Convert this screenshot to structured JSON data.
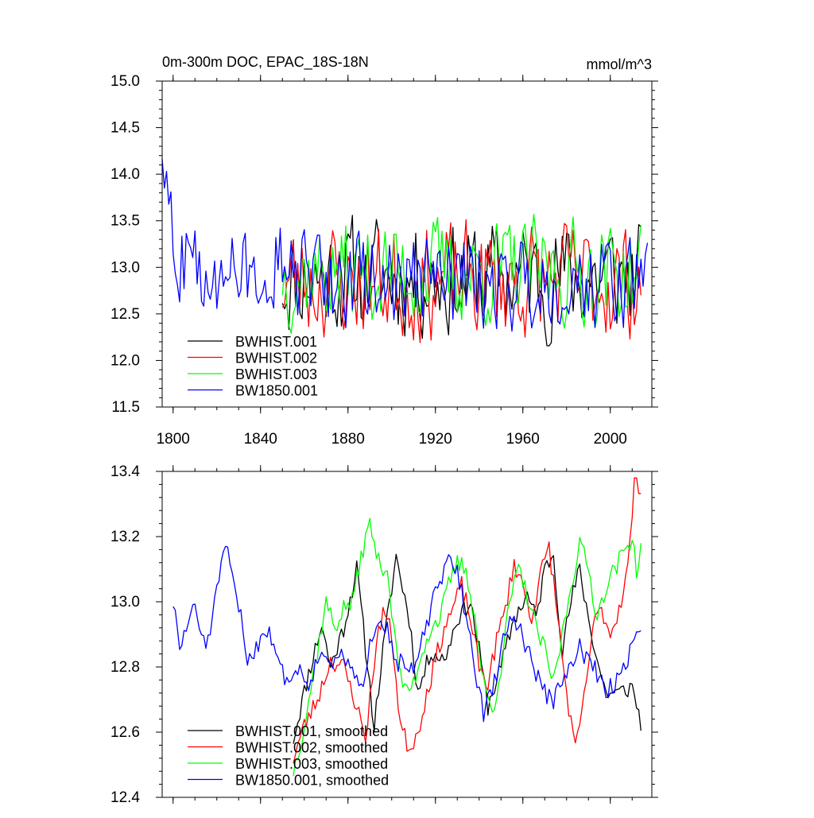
{
  "chart_data": [
    {
      "type": "line",
      "title_left": "0m-300m DOC, EPAC_18S-18N",
      "title_right": "mmol/m^3",
      "xlim": [
        1795,
        2019
      ],
      "ylim": [
        11.5,
        15.0
      ],
      "xticks": [
        1800,
        1840,
        1880,
        1920,
        1960,
        2000
      ],
      "xtick_labels": [
        "1800",
        "1840",
        "1880",
        "1920",
        "1960",
        "2000"
      ],
      "yticks": [
        11.5,
        12.0,
        12.5,
        13.0,
        13.5,
        14.0,
        14.5,
        15.0
      ],
      "ytick_labels": [
        "11.5",
        "12.0",
        "12.5",
        "13.0",
        "13.5",
        "14.0",
        "14.5",
        "15.0"
      ],
      "legend_location": "lower-left",
      "series": [
        {
          "name": "BWHIST.001",
          "color": "#000000",
          "start": 1850,
          "end": 2014,
          "mean": 12.9,
          "amplitude": 0.55,
          "seed": 11,
          "mode": "annual"
        },
        {
          "name": "BWHIST.002",
          "color": "#ff0000",
          "start": 1850,
          "end": 2014,
          "mean": 12.85,
          "amplitude": 0.55,
          "seed": 23,
          "mode": "annual"
        },
        {
          "name": "BWHIST.003",
          "color": "#00ff00",
          "start": 1850,
          "end": 2014,
          "mean": 12.95,
          "amplitude": 0.5,
          "seed": 37,
          "mode": "annual"
        },
        {
          "name": "BW1850.001",
          "color": "#0000ff",
          "start": 1795,
          "end": 2017,
          "mean": 12.85,
          "amplitude": 0.45,
          "seed": 51,
          "mode": "annual"
        }
      ]
    },
    {
      "type": "line",
      "xlim": [
        1795,
        2019
      ],
      "ylim": [
        12.4,
        13.4
      ],
      "xticks": [
        1800,
        1840,
        1880,
        1920,
        1960,
        2000
      ],
      "yticks": [
        12.4,
        12.6,
        12.8,
        13.0,
        13.2,
        13.4
      ],
      "ytick_labels": [
        "12.4",
        "12.6",
        "12.8",
        "13.0",
        "13.2",
        "13.4"
      ],
      "legend_location": "lower-left",
      "series": [
        {
          "name": "BWHIST.001, smoothed",
          "color": "#000000",
          "start": 1855,
          "end": 2014,
          "seed": 11,
          "mode": "smoothed",
          "anchors": [
            [
              1855,
              12.58
            ],
            [
              1862,
              12.78
            ],
            [
              1868,
              12.93
            ],
            [
              1872,
              12.8
            ],
            [
              1878,
              12.92
            ],
            [
              1884,
              13.1
            ],
            [
              1888,
              12.86
            ],
            [
              1892,
              12.62
            ],
            [
              1896,
              12.85
            ],
            [
              1902,
              13.14
            ],
            [
              1908,
              12.95
            ],
            [
              1912,
              12.72
            ],
            [
              1918,
              12.85
            ],
            [
              1924,
              12.82
            ],
            [
              1930,
              12.95
            ],
            [
              1936,
              13.0
            ],
            [
              1940,
              12.85
            ],
            [
              1944,
              12.68
            ],
            [
              1950,
              12.8
            ],
            [
              1956,
              12.95
            ],
            [
              1962,
              13.02
            ],
            [
              1966,
              12.95
            ],
            [
              1970,
              13.1
            ],
            [
              1974,
              13.15
            ],
            [
              1978,
              12.85
            ],
            [
              1982,
              13.0
            ],
            [
              1986,
              13.1
            ],
            [
              1990,
              12.95
            ],
            [
              1994,
              12.82
            ],
            [
              1998,
              12.72
            ],
            [
              2004,
              12.72
            ],
            [
              2010,
              12.74
            ],
            [
              2014,
              12.63
            ]
          ]
        },
        {
          "name": "BWHIST.002, smoothed",
          "color": "#ff0000",
          "start": 1855,
          "end": 2014,
          "seed": 23,
          "mode": "smoothed",
          "anchors": [
            [
              1855,
              12.52
            ],
            [
              1860,
              12.62
            ],
            [
              1866,
              12.7
            ],
            [
              1872,
              12.82
            ],
            [
              1878,
              12.8
            ],
            [
              1884,
              12.68
            ],
            [
              1888,
              12.58
            ],
            [
              1892,
              12.82
            ],
            [
              1896,
              12.98
            ],
            [
              1900,
              12.9
            ],
            [
              1904,
              12.62
            ],
            [
              1908,
              12.55
            ],
            [
              1912,
              12.6
            ],
            [
              1916,
              12.72
            ],
            [
              1920,
              12.82
            ],
            [
              1924,
              12.92
            ],
            [
              1928,
              12.98
            ],
            [
              1932,
              13.05
            ],
            [
              1936,
              12.95
            ],
            [
              1940,
              12.8
            ],
            [
              1944,
              12.75
            ],
            [
              1948,
              12.88
            ],
            [
              1952,
              12.98
            ],
            [
              1956,
              13.12
            ],
            [
              1960,
              13.05
            ],
            [
              1964,
              12.95
            ],
            [
              1968,
              13.08
            ],
            [
              1972,
              13.17
            ],
            [
              1976,
              12.95
            ],
            [
              1980,
              12.72
            ],
            [
              1984,
              12.54
            ],
            [
              1988,
              12.7
            ],
            [
              1992,
              12.92
            ],
            [
              1996,
              12.98
            ],
            [
              2000,
              12.9
            ],
            [
              2004,
              12.98
            ],
            [
              2008,
              13.1
            ],
            [
              2011,
              13.36
            ],
            [
              2014,
              13.36
            ]
          ]
        },
        {
          "name": "BWHIST.003, smoothed",
          "color": "#00ff00",
          "start": 1855,
          "end": 2014,
          "seed": 37,
          "mode": "smoothed",
          "anchors": [
            [
              1855,
              12.48
            ],
            [
              1860,
              12.62
            ],
            [
              1866,
              12.85
            ],
            [
              1870,
              13.0
            ],
            [
              1874,
              12.92
            ],
            [
              1878,
              12.98
            ],
            [
              1882,
              13.0
            ],
            [
              1886,
              13.14
            ],
            [
              1890,
              13.24
            ],
            [
              1894,
              13.12
            ],
            [
              1898,
              13.1
            ],
            [
              1902,
              12.85
            ],
            [
              1906,
              12.72
            ],
            [
              1910,
              12.75
            ],
            [
              1914,
              12.85
            ],
            [
              1918,
              12.92
            ],
            [
              1922,
              12.95
            ],
            [
              1926,
              13.05
            ],
            [
              1930,
              13.12
            ],
            [
              1934,
              13.1
            ],
            [
              1938,
              12.95
            ],
            [
              1942,
              12.75
            ],
            [
              1946,
              12.66
            ],
            [
              1950,
              12.8
            ],
            [
              1954,
              13.0
            ],
            [
              1958,
              13.1
            ],
            [
              1962,
              13.02
            ],
            [
              1966,
              12.92
            ],
            [
              1970,
              12.85
            ],
            [
              1974,
              12.75
            ],
            [
              1978,
              12.9
            ],
            [
              1982,
              13.05
            ],
            [
              1986,
              13.18
            ],
            [
              1990,
              13.1
            ],
            [
              1994,
              12.95
            ],
            [
              1998,
              13.05
            ],
            [
              2002,
              13.1
            ],
            [
              2006,
              13.15
            ],
            [
              2010,
              13.2
            ],
            [
              2012,
              13.1
            ],
            [
              2014,
              13.15
            ]
          ]
        },
        {
          "name": "BW1850.001, smoothed",
          "color": "#0000ff",
          "start": 1800,
          "end": 2014,
          "seed": 51,
          "mode": "smoothed",
          "anchors": [
            [
              1800,
              13.0
            ],
            [
              1803,
              12.85
            ],
            [
              1806,
              12.92
            ],
            [
              1809,
              12.99
            ],
            [
              1812,
              12.92
            ],
            [
              1815,
              12.87
            ],
            [
              1818,
              12.95
            ],
            [
              1822,
              13.12
            ],
            [
              1825,
              13.15
            ],
            [
              1828,
              13.04
            ],
            [
              1831,
              12.95
            ],
            [
              1834,
              12.82
            ],
            [
              1838,
              12.86
            ],
            [
              1842,
              12.92
            ],
            [
              1846,
              12.88
            ],
            [
              1850,
              12.78
            ],
            [
              1854,
              12.76
            ],
            [
              1858,
              12.8
            ],
            [
              1862,
              12.75
            ],
            [
              1866,
              12.82
            ],
            [
              1870,
              12.85
            ],
            [
              1874,
              12.8
            ],
            [
              1878,
              12.84
            ],
            [
              1882,
              12.78
            ],
            [
              1886,
              12.72
            ],
            [
              1890,
              12.88
            ],
            [
              1894,
              12.96
            ],
            [
              1898,
              12.92
            ],
            [
              1902,
              12.82
            ],
            [
              1906,
              12.8
            ],
            [
              1910,
              12.78
            ],
            [
              1914,
              12.88
            ],
            [
              1918,
              12.98
            ],
            [
              1922,
              13.06
            ],
            [
              1926,
              13.12
            ],
            [
              1930,
              13.1
            ],
            [
              1934,
              12.96
            ],
            [
              1938,
              12.8
            ],
            [
              1942,
              12.66
            ],
            [
              1946,
              12.72
            ],
            [
              1950,
              12.85
            ],
            [
              1954,
              12.96
            ],
            [
              1958,
              12.92
            ],
            [
              1962,
              12.86
            ],
            [
              1966,
              12.78
            ],
            [
              1970,
              12.72
            ],
            [
              1974,
              12.7
            ],
            [
              1978,
              12.75
            ],
            [
              1982,
              12.8
            ],
            [
              1986,
              12.86
            ],
            [
              1990,
              12.82
            ],
            [
              1994,
              12.78
            ],
            [
              1998,
              12.72
            ],
            [
              2002,
              12.75
            ],
            [
              2006,
              12.8
            ],
            [
              2010,
              12.86
            ],
            [
              2014,
              12.93
            ]
          ]
        }
      ]
    }
  ]
}
